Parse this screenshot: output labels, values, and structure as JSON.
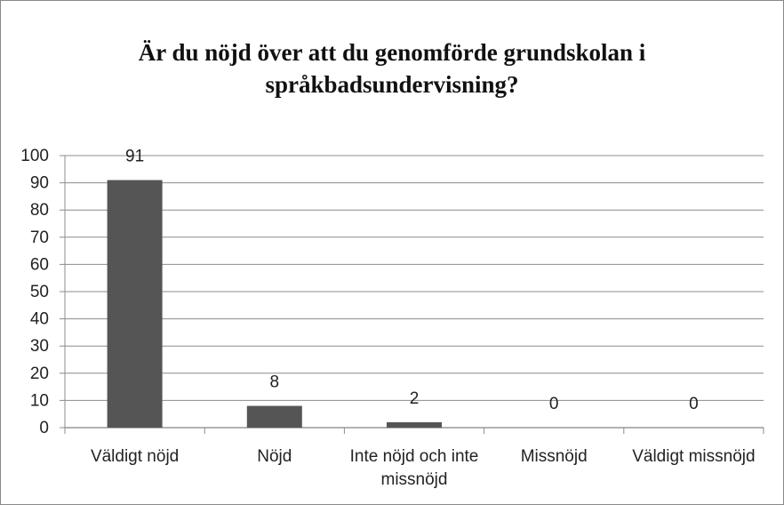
{
  "chart_data": {
    "type": "bar",
    "title": "Är du nöjd över att du genomförde grundskolan i språkbadsundervisning?",
    "categories": [
      "Väldigt nöjd",
      "Nöjd",
      "Inte nöjd och inte missnöjd",
      "Missnöjd",
      "Väldigt missnöjd"
    ],
    "values": [
      91,
      8,
      2,
      0,
      0
    ],
    "color": "#555555",
    "ylim": [
      0,
      100
    ],
    "yticks": [
      0,
      10,
      20,
      30,
      40,
      50,
      60,
      70,
      80,
      90,
      100
    ],
    "grid": true
  }
}
